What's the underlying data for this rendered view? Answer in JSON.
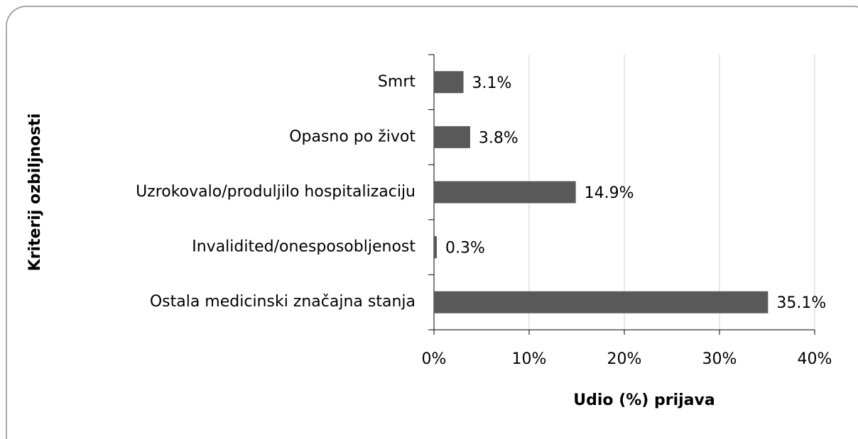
{
  "chart_data": {
    "type": "bar",
    "orientation": "horizontal",
    "categories": [
      "Smrt",
      "Opasno po život",
      "Uzrokovalo/produljilo hospitalizaciju",
      "Invalidited/onesposobljenost",
      "Ostala medicinski značajna stanja"
    ],
    "values": [
      3.1,
      3.8,
      14.9,
      0.3,
      35.1
    ],
    "value_labels": [
      "3.1%",
      "3.8%",
      "14.9%",
      "0.3%",
      "35.1%"
    ],
    "color": "#595959",
    "xlim": [
      0,
      40
    ],
    "xticks": [
      {
        "value": 0,
        "label": "0%"
      },
      {
        "value": 10,
        "label": "10%"
      },
      {
        "value": 20,
        "label": "20%"
      },
      {
        "value": 30,
        "label": "30%"
      },
      {
        "value": 40,
        "label": "40%"
      }
    ],
    "x_label": "Udio (%) prijava",
    "y_label": "Kriterij ozbiljnosti",
    "grid": true
  }
}
